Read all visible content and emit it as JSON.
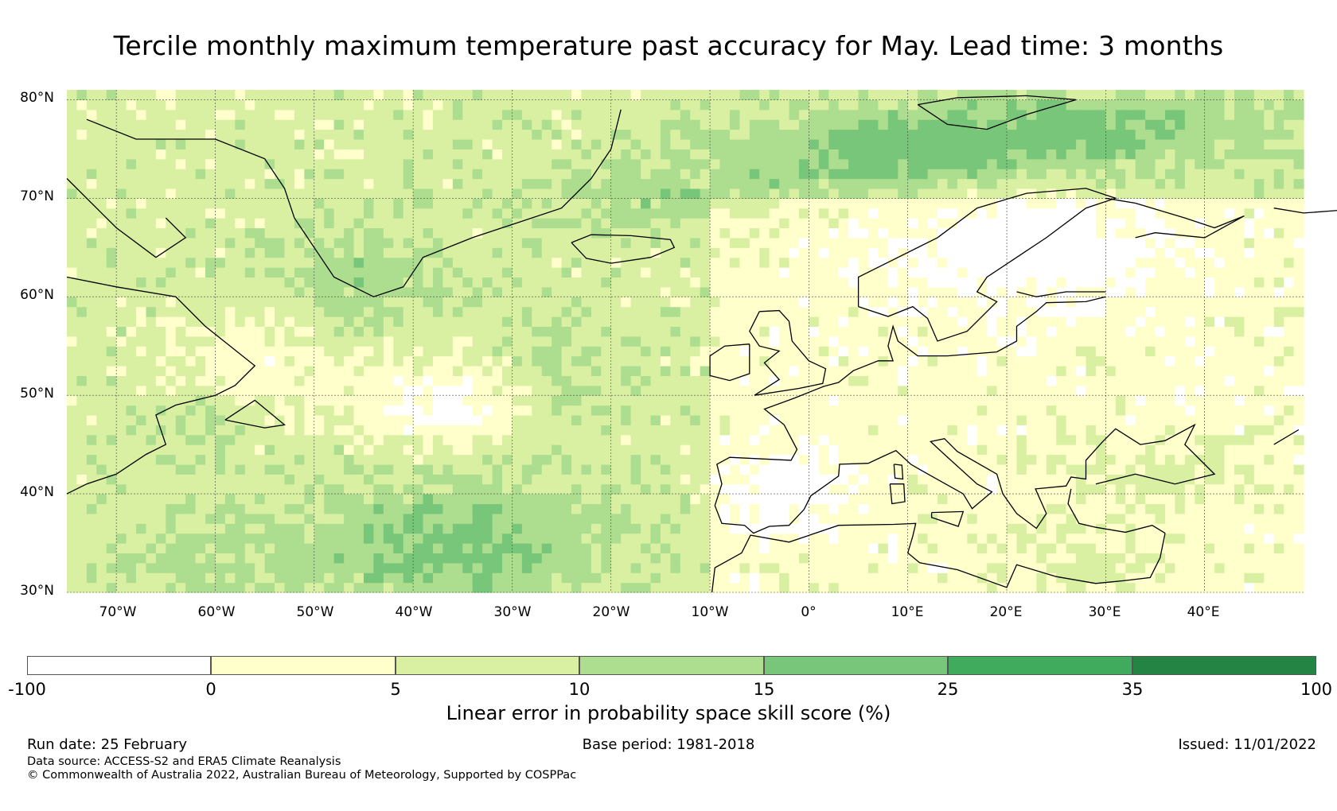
{
  "title": "Tercile monthly maximum temperature past accuracy for May. Lead time: 3 months",
  "map": {
    "lat_labels": [
      "80°N",
      "70°N",
      "60°N",
      "50°N",
      "40°N",
      "30°N"
    ],
    "lon_labels": [
      "70°W",
      "60°W",
      "50°W",
      "40°W",
      "30°W",
      "20°W",
      "10°W",
      "0°",
      "10°E",
      "20°E",
      "30°E",
      "40°E"
    ],
    "lon_range": [
      -75,
      50
    ],
    "lat_range": [
      30,
      81
    ],
    "land_outline_color": "#000000"
  },
  "legend": {
    "title": "Linear error in probability space skill score (%)",
    "ticks": [
      "-100",
      "0",
      "5",
      "10",
      "15",
      "25",
      "35",
      "100"
    ],
    "colors": [
      "#ffffff",
      "#ffffcc",
      "#d9f0a3",
      "#addd8e",
      "#78c679",
      "#41ab5d",
      "#238443"
    ]
  },
  "footer": {
    "run_date": "Run date: 25 February",
    "base_period": "Base period: 1981-2018",
    "issued": "Issued: 11/01/2022",
    "data_source": "Data source: ACCESS-S2 and ERA5 Climate Reanalysis",
    "copyright": "© Commonwealth of Australia 2022, Australian Bureau of Meteorology, Supported by COSPPac"
  }
}
